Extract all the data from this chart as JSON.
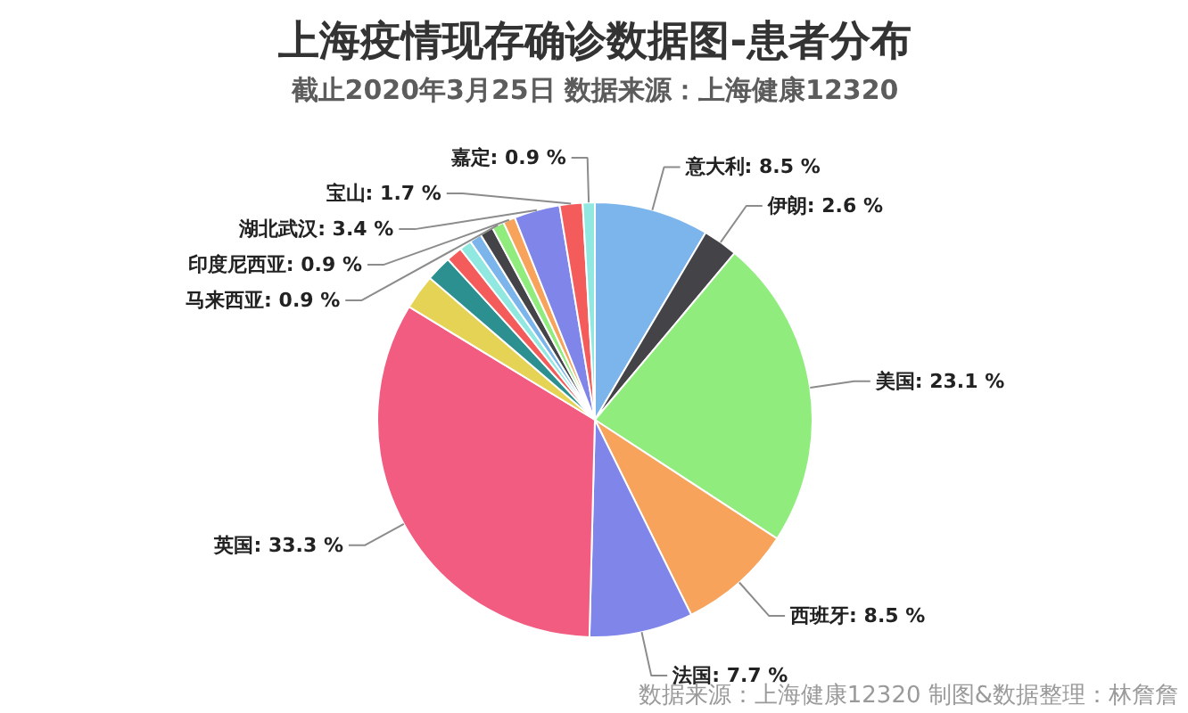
{
  "chart_data": {
    "type": "pie",
    "title": "上海疫情现存确诊数据图-患者分布",
    "subtitle": "截止2020年3月25日 数据来源：上海健康12320",
    "categories": [
      "意大利",
      "伊朗",
      "美国",
      "西班牙",
      "法国",
      "英国",
      null,
      null,
      null,
      null,
      null,
      null,
      "马来西亚",
      "印度尼西亚",
      "湖北武汉",
      "宝山",
      "嘉定"
    ],
    "values": [
      8.5,
      2.6,
      23.1,
      8.5,
      7.7,
      33.3,
      2.6,
      1.9,
      1.2,
      0.9,
      0.9,
      1.0,
      0.9,
      0.9,
      3.4,
      1.7,
      0.9
    ],
    "colors": [
      "#7cb5ec",
      "#434348",
      "#90ed7d",
      "#f7a35c",
      "#8085e9",
      "#f15c80",
      "#e4d354",
      "#2b908f",
      "#f45b5b",
      "#91e8e1",
      "#7cb5ec",
      "#434348",
      "#90ed7d",
      "#f7a35c",
      "#8085e9",
      "#f45b5b",
      "#91e8e1"
    ],
    "value_labels": [
      "8.5 %",
      "2.6 %",
      "23.1 %",
      "8.5 %",
      "7.7 %",
      "33.3 %",
      null,
      null,
      null,
      null,
      null,
      null,
      "0.9 %",
      "0.9 %",
      "3.4 %",
      "1.7 %",
      "0.9 %"
    ],
    "annotations": [
      "数据来源：上海健康12320 制图&数据整理：林詹詹"
    ]
  }
}
